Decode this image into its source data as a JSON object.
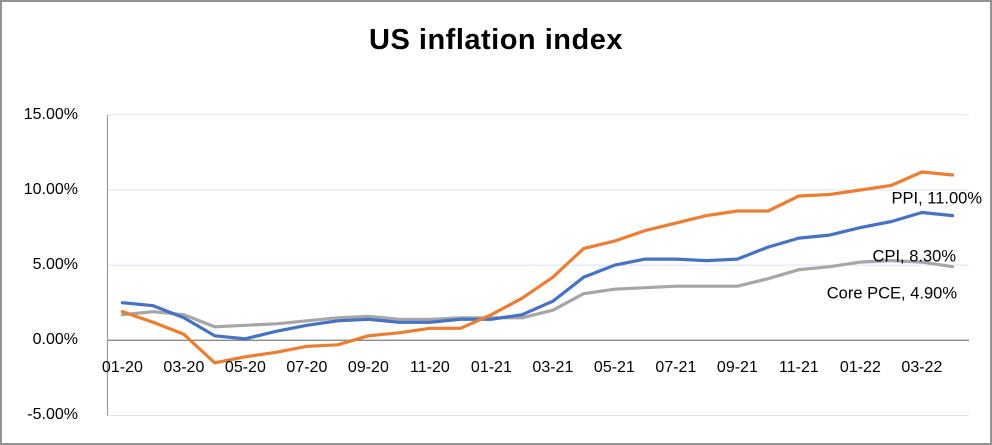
{
  "chart_data": {
    "type": "line",
    "title": "US inflation index",
    "xlabel": "",
    "ylabel": "",
    "ylim": [
      -5,
      15
    ],
    "grid": true,
    "legend_position": "none",
    "x_tick_every": 2,
    "categories": [
      "01-20",
      "02-20",
      "03-20",
      "04-20",
      "05-20",
      "06-20",
      "07-20",
      "08-20",
      "09-20",
      "10-20",
      "11-20",
      "12-20",
      "01-21",
      "02-21",
      "03-21",
      "04-21",
      "05-21",
      "06-21",
      "07-21",
      "08-21",
      "09-21",
      "10-21",
      "11-21",
      "12-21",
      "01-22",
      "02-22",
      "03-22",
      "04-22"
    ],
    "series": [
      {
        "name": "Core PCE",
        "color": "#A6A6A6",
        "end_label": "Core PCE, 4.90%",
        "values": [
          1.7,
          1.9,
          1.7,
          0.9,
          1.0,
          1.1,
          1.3,
          1.5,
          1.6,
          1.4,
          1.4,
          1.5,
          1.5,
          1.5,
          2.0,
          3.1,
          3.4,
          3.5,
          3.6,
          3.6,
          3.6,
          4.1,
          4.7,
          4.9,
          5.2,
          5.3,
          5.2,
          4.9
        ]
      },
      {
        "name": "CPI",
        "color": "#4472C4",
        "end_label": "CPI, 8.30%",
        "values": [
          2.5,
          2.3,
          1.5,
          0.3,
          0.1,
          0.6,
          1.0,
          1.3,
          1.4,
          1.2,
          1.2,
          1.4,
          1.4,
          1.7,
          2.6,
          4.2,
          5.0,
          5.4,
          5.4,
          5.3,
          5.4,
          6.2,
          6.8,
          7.0,
          7.5,
          7.9,
          8.5,
          8.3
        ]
      },
      {
        "name": "PPI",
        "color": "#ED7D31",
        "end_label": "PPI, 11.00%",
        "values": [
          1.9,
          1.2,
          0.4,
          -1.5,
          -1.1,
          -0.8,
          -0.4,
          -0.3,
          0.3,
          0.5,
          0.8,
          0.8,
          1.7,
          2.8,
          4.2,
          6.1,
          6.6,
          7.3,
          7.8,
          8.3,
          8.6,
          8.6,
          9.6,
          9.7,
          10.0,
          10.3,
          11.2,
          11.0
        ]
      }
    ],
    "y_ticks": [
      {
        "label": "15.00%",
        "value": 15
      },
      {
        "label": "10.00%",
        "value": 10
      },
      {
        "label": "5.00%",
        "value": 5
      },
      {
        "label": "0.00%",
        "value": 0
      },
      {
        "label": "-5.00%",
        "value": -5
      }
    ],
    "colors": {
      "gridline": "#dae3f3",
      "zero_line": "#8a8a8a",
      "axis_line": "#9b9b9b",
      "text": "#000000"
    }
  }
}
